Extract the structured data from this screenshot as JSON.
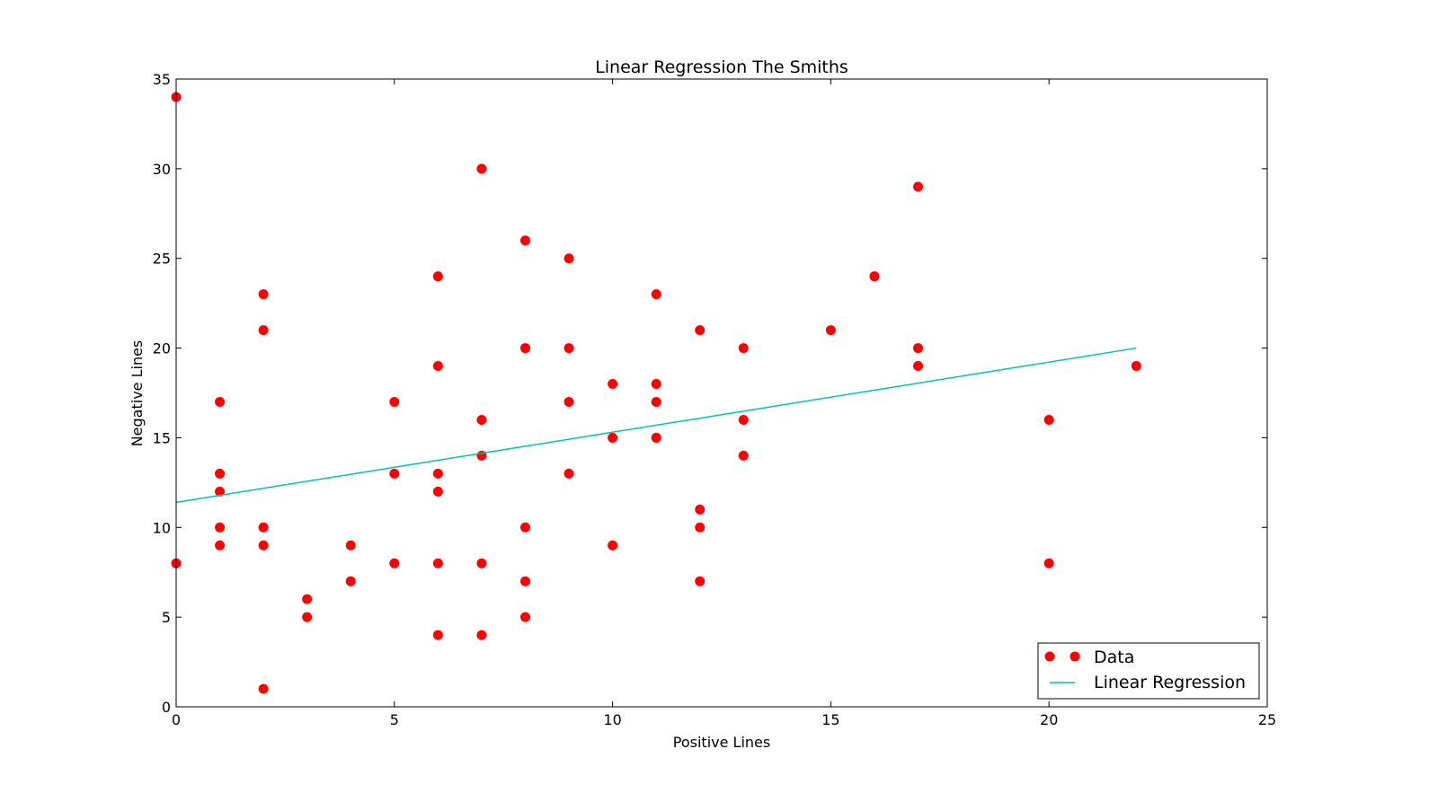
{
  "chart_data": {
    "type": "scatter",
    "title": "Linear Regression The Smiths",
    "xlabel": "Positive Lines",
    "ylabel": "Negative Lines",
    "xlim": [
      0,
      25
    ],
    "ylim": [
      0,
      35
    ],
    "xticks": [
      0,
      5,
      10,
      15,
      20,
      25
    ],
    "yticks": [
      0,
      5,
      10,
      15,
      20,
      25,
      30,
      35
    ],
    "grid": false,
    "legend_position": "bottom-right",
    "series": [
      {
        "name": "Data",
        "kind": "scatter",
        "color": "#ff0000",
        "points": [
          [
            0,
            34
          ],
          [
            0,
            8
          ],
          [
            1,
            17
          ],
          [
            1,
            13
          ],
          [
            1,
            12
          ],
          [
            1,
            10
          ],
          [
            1,
            9
          ],
          [
            2,
            23
          ],
          [
            2,
            21
          ],
          [
            2,
            10
          ],
          [
            2,
            9
          ],
          [
            2,
            1
          ],
          [
            3,
            6
          ],
          [
            3,
            5
          ],
          [
            4,
            9
          ],
          [
            4,
            7
          ],
          [
            5,
            17
          ],
          [
            5,
            13
          ],
          [
            5,
            8
          ],
          [
            6,
            24
          ],
          [
            6,
            19
          ],
          [
            6,
            13
          ],
          [
            6,
            12
          ],
          [
            6,
            8
          ],
          [
            6,
            4
          ],
          [
            7,
            30
          ],
          [
            7,
            16
          ],
          [
            7,
            14
          ],
          [
            7,
            8
          ],
          [
            7,
            4
          ],
          [
            8,
            26
          ],
          [
            8,
            20
          ],
          [
            8,
            10
          ],
          [
            8,
            7
          ],
          [
            8,
            5
          ],
          [
            9,
            25
          ],
          [
            9,
            20
          ],
          [
            9,
            17
          ],
          [
            9,
            13
          ],
          [
            10,
            18
          ],
          [
            10,
            15
          ],
          [
            10,
            9
          ],
          [
            11,
            23
          ],
          [
            11,
            18
          ],
          [
            11,
            17
          ],
          [
            11,
            15
          ],
          [
            12,
            21
          ],
          [
            12,
            11
          ],
          [
            12,
            10
          ],
          [
            12,
            7
          ],
          [
            13,
            20
          ],
          [
            13,
            16
          ],
          [
            13,
            14
          ],
          [
            15,
            21
          ],
          [
            16,
            24
          ],
          [
            17,
            29
          ],
          [
            17,
            20
          ],
          [
            17,
            19
          ],
          [
            20,
            16
          ],
          [
            20,
            8
          ],
          [
            22,
            19
          ]
        ]
      },
      {
        "name": "Linear Regression",
        "kind": "line",
        "color": "#00bfbf",
        "points": [
          [
            0,
            11.4
          ],
          [
            22,
            20.0
          ]
        ]
      }
    ]
  }
}
